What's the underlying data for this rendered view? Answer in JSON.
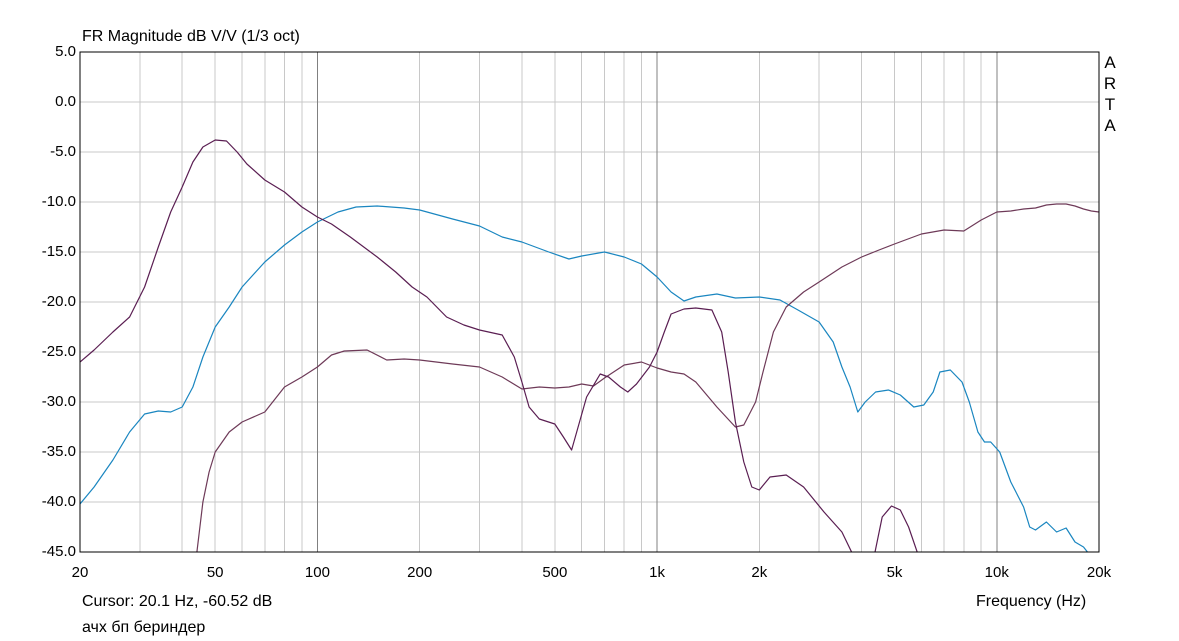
{
  "chart_data": {
    "type": "line",
    "title": "FR Magnitude dB V/V (1/3 oct)",
    "xlabel": "Frequency (Hz)",
    "ylabel": "",
    "x_scale": "log",
    "xlim": [
      20,
      20000
    ],
    "ylim": [
      -45,
      5
    ],
    "x_ticks": [
      {
        "value": 20,
        "label": "20"
      },
      {
        "value": 50,
        "label": "50"
      },
      {
        "value": 100,
        "label": "100"
      },
      {
        "value": 200,
        "label": "200"
      },
      {
        "value": 500,
        "label": "500"
      },
      {
        "value": 1000,
        "label": "1k"
      },
      {
        "value": 2000,
        "label": "2k"
      },
      {
        "value": 5000,
        "label": "5k"
      },
      {
        "value": 10000,
        "label": "10k"
      },
      {
        "value": 20000,
        "label": "20k"
      }
    ],
    "y_ticks": [
      "5.0",
      "0.0",
      "-5.0",
      "-10.0",
      "-15.0",
      "-20.0",
      "-25.0",
      "-30.0",
      "-35.0",
      "-40.0",
      "-45.0"
    ],
    "grid": true,
    "series": [
      {
        "color": "#1a86c0",
        "points": [
          [
            20,
            -40.2
          ],
          [
            22,
            -38.5
          ],
          [
            25,
            -35.8
          ],
          [
            28,
            -33
          ],
          [
            31,
            -31.2
          ],
          [
            34,
            -30.9
          ],
          [
            37,
            -31
          ],
          [
            40,
            -30.5
          ],
          [
            43,
            -28.5
          ],
          [
            46,
            -25.5
          ],
          [
            50,
            -22.5
          ],
          [
            55,
            -20.5
          ],
          [
            60,
            -18.5
          ],
          [
            70,
            -16
          ],
          [
            80,
            -14.3
          ],
          [
            90,
            -13
          ],
          [
            100,
            -12
          ],
          [
            115,
            -11
          ],
          [
            130,
            -10.5
          ],
          [
            150,
            -10.4
          ],
          [
            180,
            -10.6
          ],
          [
            200,
            -10.8
          ],
          [
            250,
            -11.7
          ],
          [
            300,
            -12.4
          ],
          [
            350,
            -13.5
          ],
          [
            400,
            -14
          ],
          [
            480,
            -15
          ],
          [
            550,
            -15.7
          ],
          [
            600,
            -15.4
          ],
          [
            700,
            -15
          ],
          [
            800,
            -15.5
          ],
          [
            900,
            -16.2
          ],
          [
            1000,
            -17.5
          ],
          [
            1100,
            -19
          ],
          [
            1200,
            -19.9
          ],
          [
            1300,
            -19.5
          ],
          [
            1500,
            -19.2
          ],
          [
            1700,
            -19.6
          ],
          [
            2000,
            -19.5
          ],
          [
            2300,
            -19.8
          ],
          [
            2600,
            -20.8
          ],
          [
            3000,
            -22
          ],
          [
            3300,
            -24
          ],
          [
            3500,
            -26.5
          ],
          [
            3700,
            -28.5
          ],
          [
            3900,
            -31
          ],
          [
            4100,
            -30
          ],
          [
            4400,
            -29
          ],
          [
            4800,
            -28.8
          ],
          [
            5200,
            -29.3
          ],
          [
            5700,
            -30.5
          ],
          [
            6100,
            -30.3
          ],
          [
            6500,
            -29
          ],
          [
            6800,
            -27
          ],
          [
            7300,
            -26.8
          ],
          [
            7900,
            -28
          ],
          [
            8300,
            -30
          ],
          [
            8800,
            -33
          ],
          [
            9200,
            -34
          ],
          [
            9600,
            -34
          ],
          [
            10200,
            -35
          ],
          [
            11000,
            -38
          ],
          [
            12000,
            -40.5
          ],
          [
            12500,
            -42.5
          ],
          [
            13000,
            -42.8
          ],
          [
            14000,
            -42
          ],
          [
            15000,
            -43
          ],
          [
            16000,
            -42.6
          ],
          [
            17000,
            -44
          ],
          [
            18000,
            -44.5
          ],
          [
            19000,
            -45.5
          ]
        ]
      },
      {
        "color": "#6e3a58",
        "points": [
          [
            44,
            -45.5
          ],
          [
            46,
            -40
          ],
          [
            48,
            -37
          ],
          [
            50,
            -35
          ],
          [
            55,
            -33
          ],
          [
            60,
            -32
          ],
          [
            70,
            -31
          ],
          [
            80,
            -28.5
          ],
          [
            90,
            -27.5
          ],
          [
            100,
            -26.5
          ],
          [
            110,
            -25.3
          ],
          [
            120,
            -24.9
          ],
          [
            140,
            -24.8
          ],
          [
            160,
            -25.8
          ],
          [
            180,
            -25.7
          ],
          [
            200,
            -25.8
          ],
          [
            250,
            -26.2
          ],
          [
            300,
            -26.5
          ],
          [
            350,
            -27.5
          ],
          [
            400,
            -28.7
          ],
          [
            450,
            -28.5
          ],
          [
            500,
            -28.6
          ],
          [
            550,
            -28.5
          ],
          [
            600,
            -28.2
          ],
          [
            650,
            -28.4
          ],
          [
            700,
            -27.6
          ],
          [
            800,
            -26.3
          ],
          [
            900,
            -26
          ],
          [
            1000,
            -26.6
          ],
          [
            1100,
            -27
          ],
          [
            1200,
            -27.2
          ],
          [
            1300,
            -28
          ],
          [
            1500,
            -30.5
          ],
          [
            1700,
            -32.5
          ],
          [
            1800,
            -32.3
          ],
          [
            1950,
            -30
          ],
          [
            2050,
            -27
          ],
          [
            2200,
            -23
          ],
          [
            2400,
            -20.5
          ],
          [
            2700,
            -19
          ],
          [
            3000,
            -18
          ],
          [
            3500,
            -16.5
          ],
          [
            4000,
            -15.5
          ],
          [
            4500,
            -14.8
          ],
          [
            5000,
            -14.2
          ],
          [
            6000,
            -13.2
          ],
          [
            7000,
            -12.8
          ],
          [
            8000,
            -12.9
          ],
          [
            9000,
            -11.8
          ],
          [
            10000,
            -11
          ],
          [
            11000,
            -10.9
          ],
          [
            12000,
            -10.7
          ],
          [
            13000,
            -10.6
          ],
          [
            14000,
            -10.3
          ],
          [
            15000,
            -10.2
          ],
          [
            16000,
            -10.2
          ],
          [
            17000,
            -10.4
          ],
          [
            18000,
            -10.7
          ],
          [
            19000,
            -10.9
          ],
          [
            20000,
            -11
          ]
        ]
      },
      {
        "color": "#5a1e52",
        "points": [
          [
            20,
            -26
          ],
          [
            22,
            -24.8
          ],
          [
            25,
            -23
          ],
          [
            28,
            -21.5
          ],
          [
            31,
            -18.5
          ],
          [
            34,
            -14.5
          ],
          [
            37,
            -11
          ],
          [
            40,
            -8.5
          ],
          [
            43,
            -6
          ],
          [
            46,
            -4.5
          ],
          [
            50,
            -3.8
          ],
          [
            54,
            -3.9
          ],
          [
            58,
            -5
          ],
          [
            62,
            -6.2
          ],
          [
            70,
            -7.8
          ],
          [
            80,
            -9
          ],
          [
            90,
            -10.5
          ],
          [
            100,
            -11.5
          ],
          [
            110,
            -12.2
          ],
          [
            125,
            -13.5
          ],
          [
            150,
            -15.5
          ],
          [
            170,
            -17
          ],
          [
            190,
            -18.5
          ],
          [
            210,
            -19.5
          ],
          [
            240,
            -21.5
          ],
          [
            270,
            -22.3
          ],
          [
            300,
            -22.8
          ],
          [
            350,
            -23.3
          ],
          [
            380,
            -25.5
          ],
          [
            400,
            -28
          ],
          [
            420,
            -30.5
          ],
          [
            450,
            -31.7
          ],
          [
            500,
            -32.2
          ],
          [
            530,
            -33.5
          ],
          [
            560,
            -34.8
          ],
          [
            580,
            -33
          ],
          [
            620,
            -29.5
          ],
          [
            680,
            -27.2
          ],
          [
            720,
            -27.5
          ],
          [
            780,
            -28.5
          ],
          [
            820,
            -29
          ],
          [
            870,
            -28.2
          ],
          [
            950,
            -26.5
          ],
          [
            1000,
            -25
          ],
          [
            1050,
            -23
          ],
          [
            1100,
            -21.2
          ],
          [
            1200,
            -20.7
          ],
          [
            1300,
            -20.6
          ],
          [
            1450,
            -20.8
          ],
          [
            1550,
            -23
          ],
          [
            1620,
            -27
          ],
          [
            1700,
            -32
          ],
          [
            1800,
            -36
          ],
          [
            1900,
            -38.5
          ],
          [
            2000,
            -38.8
          ],
          [
            2150,
            -37.5
          ],
          [
            2400,
            -37.3
          ],
          [
            2700,
            -38.5
          ],
          [
            3100,
            -41
          ],
          [
            3500,
            -43
          ],
          [
            3800,
            -45.5
          ],
          [
            4350,
            -45.5
          ],
          [
            4600,
            -41.5
          ],
          [
            4900,
            -40.4
          ],
          [
            5200,
            -40.8
          ],
          [
            5500,
            -42.5
          ],
          [
            5900,
            -45.5
          ]
        ]
      }
    ]
  },
  "right_vertical_text": [
    "A",
    "R",
    "T",
    "A"
  ],
  "status": {
    "cursor": "Cursor: 20.1 Hz, -60.52 dB",
    "caption": "ачх бп бериндер"
  }
}
